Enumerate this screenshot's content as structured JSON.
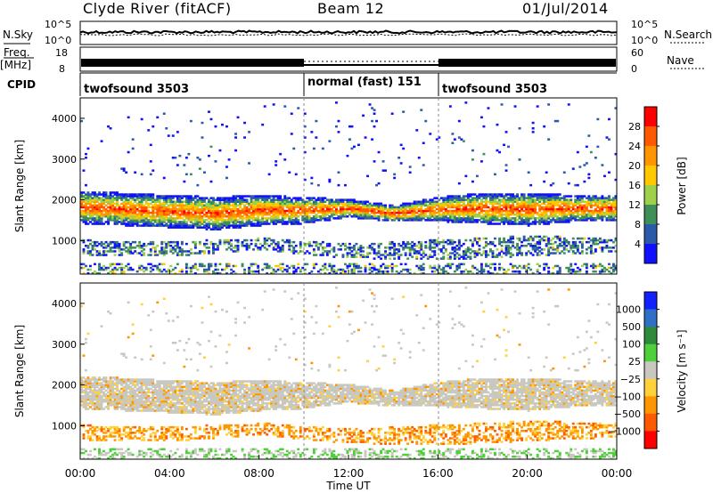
{
  "header": {
    "station": "Clyde River (fitACF)",
    "beam": "Beam 12",
    "date": "01/Jul/2014"
  },
  "strip_labels": {
    "nsky": "N.Sky",
    "nsky_ticks": [
      "10^5",
      "10^0"
    ],
    "nsearch": "N.Search",
    "nsearch_ticks": [
      "10^5",
      "10^0"
    ],
    "freq": "Freq.",
    "freq_unit": "[MHz]",
    "freq_ticks": [
      "18",
      "8"
    ],
    "nave": "Nave",
    "nave_ticks": [
      "60",
      "0"
    ],
    "cpid": "CPID"
  },
  "cpid_segments": [
    {
      "label": "twofsound 3503",
      "start_h": 0,
      "end_h": 10
    },
    {
      "label": "normal (fast) 151",
      "start_h": 10,
      "end_h": 16
    },
    {
      "label": "twofsound 3503",
      "start_h": 16,
      "end_h": 24
    }
  ],
  "panels": {
    "power": {
      "ylabel": "Slant Range [km]",
      "colorbar_label": "Power [dB]",
      "colorbar_ticks": [
        "28",
        "24",
        "20",
        "16",
        "12",
        "8",
        "4"
      ],
      "colors": [
        "#ff0000",
        "#ff5a00",
        "#ff9600",
        "#ffc800",
        "#9fd04a",
        "#3f8f58",
        "#2a5aa8",
        "#1010ff"
      ]
    },
    "velocity": {
      "ylabel": "Slant Range [km]",
      "colorbar_label": "Velocity [m s⁻¹]",
      "colorbar_ticks": [
        "1000",
        "500",
        "100",
        "25",
        "−25",
        "−100",
        "−500",
        "−1000"
      ],
      "colors": [
        "#1020ff",
        "#2f6fc8",
        "#2e8a3a",
        "#4fcf3a",
        "#c8c8c0",
        "#ffd23c",
        "#ff9600",
        "#ff5a00",
        "#ff0000"
      ]
    }
  },
  "chart_data": {
    "type": "heatmap",
    "x_axis": {
      "label": "Time UT",
      "ticks": [
        "00:00",
        "04:00",
        "08:00",
        "12:00",
        "16:00",
        "20:00",
        "00:00"
      ],
      "range_hours": [
        0,
        24
      ]
    },
    "y_axis": {
      "label": "Slant Range [km]",
      "ticks": [
        1000,
        2000,
        3000,
        4000
      ],
      "range_km": [
        180,
        4500
      ]
    },
    "power_db_range": [
      0,
      30
    ],
    "velocity_range_ms": [
      -1000,
      1000
    ],
    "main_echo_band_km": [
      {
        "h": 0,
        "lo": 1400,
        "hi": 2200
      },
      {
        "h": 2,
        "lo": 1350,
        "hi": 2150
      },
      {
        "h": 4,
        "lo": 1300,
        "hi": 2100
      },
      {
        "h": 6,
        "lo": 1250,
        "hi": 2050
      },
      {
        "h": 8,
        "lo": 1350,
        "hi": 2100
      },
      {
        "h": 10,
        "lo": 1400,
        "hi": 2050
      },
      {
        "h": 12,
        "lo": 1550,
        "hi": 2000
      },
      {
        "h": 14,
        "lo": 1450,
        "hi": 1850
      },
      {
        "h": 16,
        "lo": 1450,
        "hi": 2050
      },
      {
        "h": 18,
        "lo": 1400,
        "hi": 2150
      },
      {
        "h": 20,
        "lo": 1350,
        "hi": 2150
      },
      {
        "h": 22,
        "lo": 1450,
        "hi": 2100
      },
      {
        "h": 24,
        "lo": 1450,
        "hi": 2100
      }
    ],
    "lower_echo_band_km": [
      {
        "h": 0,
        "lo": 600,
        "hi": 1000
      },
      {
        "h": 4,
        "lo": 600,
        "hi": 950
      },
      {
        "h": 8,
        "lo": 750,
        "hi": 1050
      },
      {
        "h": 12,
        "lo": 550,
        "hi": 900
      },
      {
        "h": 16,
        "lo": 500,
        "hi": 1000
      },
      {
        "h": 20,
        "lo": 600,
        "hi": 1100
      },
      {
        "h": 24,
        "lo": 700,
        "hi": 1050
      }
    ]
  }
}
